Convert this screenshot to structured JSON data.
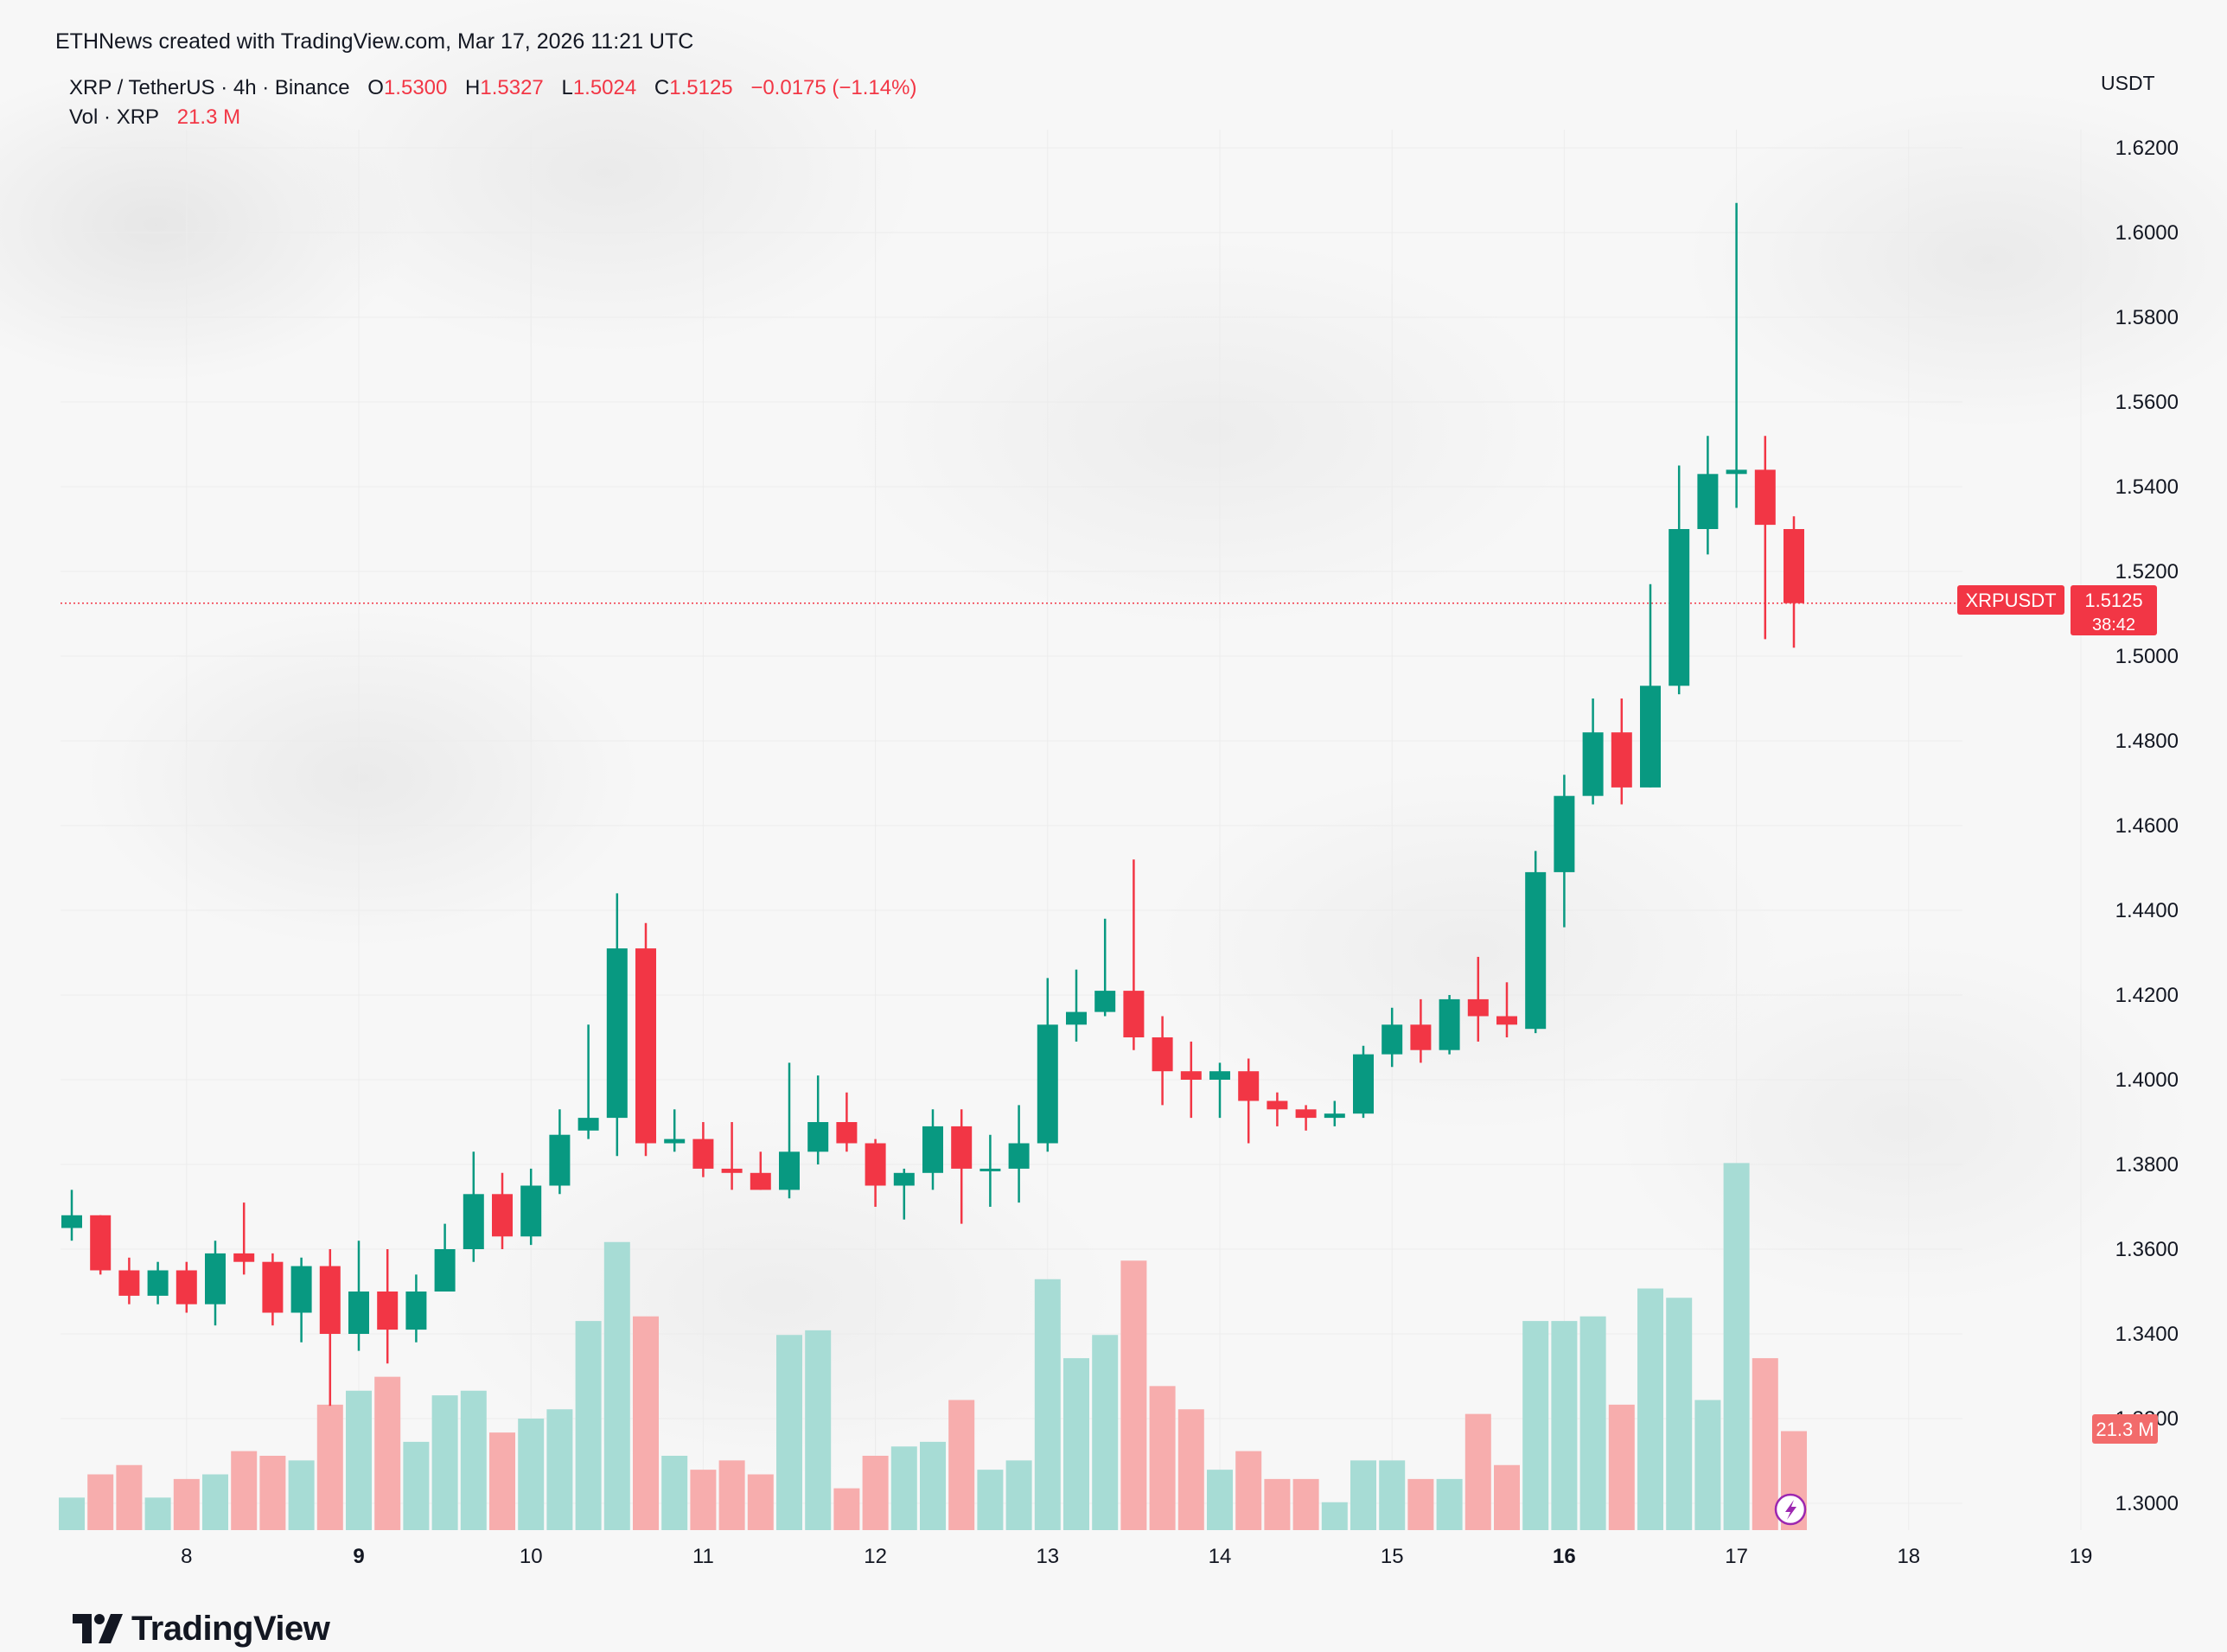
{
  "header": {
    "source": "ETHNews created with TradingView.com, Mar 17, 2026 11:21 UTC",
    "symbol": "XRP / TetherUS · 4h · Binance",
    "open_label": "O",
    "open_value": "1.5300",
    "high_label": "H",
    "high_value": "1.5327",
    "low_label": "L",
    "low_value": "1.5024",
    "close_label": "C",
    "close_value": "1.5125",
    "change": "−0.0175 (−1.14%)",
    "vol_label": "Vol · XRP",
    "vol_value": "21.3 M"
  },
  "brand": {
    "name": "TradingView"
  },
  "colors": {
    "up": "#089981",
    "down": "#f23645",
    "vol_up": "#a7dcd5",
    "vol_down": "#f7adad"
  },
  "chart_data": {
    "type": "candlestick",
    "currency_label": "USDT",
    "ylim": [
      1.29,
      1.635
    ],
    "y_ticks": [
      "1.6200",
      "1.6000",
      "1.5800",
      "1.5600",
      "1.5400",
      "1.5200",
      "1.5000",
      "1.4800",
      "1.4600",
      "1.4400",
      "1.4200",
      "1.4000",
      "1.3800",
      "1.3600",
      "1.3400",
      "1.3200",
      "1.3000"
    ],
    "y_tick_values": [
      1.62,
      1.6,
      1.58,
      1.56,
      1.54,
      1.52,
      1.5,
      1.48,
      1.46,
      1.44,
      1.42,
      1.4,
      1.38,
      1.36,
      1.34,
      1.32,
      1.3
    ],
    "x_ticks": [
      "8",
      "9",
      "10",
      "11",
      "12",
      "13",
      "14",
      "15",
      "16",
      "17",
      "18",
      "19"
    ],
    "x_tick_bold": [
      "9",
      "16"
    ],
    "x_tick_candle_index": [
      4,
      10,
      16,
      22,
      28,
      34,
      40,
      46,
      52,
      58,
      64,
      70
    ],
    "price_tag": {
      "symbol": "XRPUSDT",
      "price": "1.5125",
      "countdown": "38:42",
      "value": 1.5125
    },
    "volume_tag": "21.3 M",
    "volume_max_m": 80,
    "candles": [
      {
        "o": 1.365,
        "h": 1.374,
        "l": 1.362,
        "c": 1.368,
        "v": 7
      },
      {
        "o": 1.368,
        "h": 1.368,
        "l": 1.354,
        "c": 1.355,
        "v": 12
      },
      {
        "o": 1.355,
        "h": 1.358,
        "l": 1.347,
        "c": 1.349,
        "v": 14
      },
      {
        "o": 1.349,
        "h": 1.357,
        "l": 1.347,
        "c": 1.355,
        "v": 7
      },
      {
        "o": 1.355,
        "h": 1.357,
        "l": 1.345,
        "c": 1.347,
        "v": 11
      },
      {
        "o": 1.347,
        "h": 1.362,
        "l": 1.342,
        "c": 1.359,
        "v": 12
      },
      {
        "o": 1.359,
        "h": 1.371,
        "l": 1.354,
        "c": 1.357,
        "v": 17
      },
      {
        "o": 1.357,
        "h": 1.359,
        "l": 1.342,
        "c": 1.345,
        "v": 16
      },
      {
        "o": 1.345,
        "h": 1.358,
        "l": 1.338,
        "c": 1.356,
        "v": 15
      },
      {
        "o": 1.356,
        "h": 1.36,
        "l": 1.323,
        "c": 1.34,
        "v": 27
      },
      {
        "o": 1.34,
        "h": 1.362,
        "l": 1.336,
        "c": 1.35,
        "v": 30
      },
      {
        "o": 1.35,
        "h": 1.36,
        "l": 1.333,
        "c": 1.341,
        "v": 33
      },
      {
        "o": 1.341,
        "h": 1.354,
        "l": 1.338,
        "c": 1.35,
        "v": 19
      },
      {
        "o": 1.35,
        "h": 1.366,
        "l": 1.35,
        "c": 1.36,
        "v": 29
      },
      {
        "o": 1.36,
        "h": 1.383,
        "l": 1.357,
        "c": 1.373,
        "v": 30
      },
      {
        "o": 1.373,
        "h": 1.378,
        "l": 1.36,
        "c": 1.363,
        "v": 21
      },
      {
        "o": 1.363,
        "h": 1.379,
        "l": 1.361,
        "c": 1.375,
        "v": 24
      },
      {
        "o": 1.375,
        "h": 1.393,
        "l": 1.373,
        "c": 1.387,
        "v": 26
      },
      {
        "o": 1.388,
        "h": 1.413,
        "l": 1.386,
        "c": 1.391,
        "v": 45
      },
      {
        "o": 1.391,
        "h": 1.444,
        "l": 1.382,
        "c": 1.431,
        "v": 62
      },
      {
        "o": 1.431,
        "h": 1.437,
        "l": 1.382,
        "c": 1.385,
        "v": 46
      },
      {
        "o": 1.385,
        "h": 1.393,
        "l": 1.383,
        "c": 1.386,
        "v": 16
      },
      {
        "o": 1.386,
        "h": 1.39,
        "l": 1.377,
        "c": 1.379,
        "v": 13
      },
      {
        "o": 1.379,
        "h": 1.39,
        "l": 1.374,
        "c": 1.378,
        "v": 15
      },
      {
        "o": 1.378,
        "h": 1.383,
        "l": 1.374,
        "c": 1.374,
        "v": 12
      },
      {
        "o": 1.374,
        "h": 1.404,
        "l": 1.372,
        "c": 1.383,
        "v": 42
      },
      {
        "o": 1.383,
        "h": 1.401,
        "l": 1.38,
        "c": 1.39,
        "v": 43
      },
      {
        "o": 1.39,
        "h": 1.397,
        "l": 1.383,
        "c": 1.385,
        "v": 9
      },
      {
        "o": 1.385,
        "h": 1.386,
        "l": 1.37,
        "c": 1.375,
        "v": 16
      },
      {
        "o": 1.375,
        "h": 1.379,
        "l": 1.367,
        "c": 1.378,
        "v": 18
      },
      {
        "o": 1.378,
        "h": 1.393,
        "l": 1.374,
        "c": 1.389,
        "v": 19
      },
      {
        "o": 1.389,
        "h": 1.393,
        "l": 1.366,
        "c": 1.379,
        "v": 28
      },
      {
        "o": 1.379,
        "h": 1.387,
        "l": 1.37,
        "c": 1.379,
        "v": 13
      },
      {
        "o": 1.379,
        "h": 1.394,
        "l": 1.371,
        "c": 1.385,
        "v": 15
      },
      {
        "o": 1.385,
        "h": 1.424,
        "l": 1.383,
        "c": 1.413,
        "v": 54
      },
      {
        "o": 1.413,
        "h": 1.426,
        "l": 1.409,
        "c": 1.416,
        "v": 37
      },
      {
        "o": 1.416,
        "h": 1.438,
        "l": 1.415,
        "c": 1.421,
        "v": 42
      },
      {
        "o": 1.421,
        "h": 1.452,
        "l": 1.407,
        "c": 1.41,
        "v": 58
      },
      {
        "o": 1.41,
        "h": 1.415,
        "l": 1.394,
        "c": 1.402,
        "v": 31
      },
      {
        "o": 1.402,
        "h": 1.409,
        "l": 1.391,
        "c": 1.4,
        "v": 26
      },
      {
        "o": 1.4,
        "h": 1.404,
        "l": 1.391,
        "c": 1.402,
        "v": 13
      },
      {
        "o": 1.402,
        "h": 1.405,
        "l": 1.385,
        "c": 1.395,
        "v": 17
      },
      {
        "o": 1.395,
        "h": 1.397,
        "l": 1.389,
        "c": 1.393,
        "v": 11
      },
      {
        "o": 1.393,
        "h": 1.394,
        "l": 1.388,
        "c": 1.391,
        "v": 11
      },
      {
        "o": 1.391,
        "h": 1.395,
        "l": 1.389,
        "c": 1.392,
        "v": 6
      },
      {
        "o": 1.392,
        "h": 1.408,
        "l": 1.391,
        "c": 1.406,
        "v": 15
      },
      {
        "o": 1.406,
        "h": 1.417,
        "l": 1.403,
        "c": 1.413,
        "v": 15
      },
      {
        "o": 1.413,
        "h": 1.419,
        "l": 1.404,
        "c": 1.407,
        "v": 11
      },
      {
        "o": 1.407,
        "h": 1.42,
        "l": 1.406,
        "c": 1.419,
        "v": 11
      },
      {
        "o": 1.419,
        "h": 1.429,
        "l": 1.409,
        "c": 1.415,
        "v": 25
      },
      {
        "o": 1.415,
        "h": 1.423,
        "l": 1.41,
        "c": 1.413,
        "v": 14
      },
      {
        "o": 1.412,
        "h": 1.454,
        "l": 1.411,
        "c": 1.449,
        "v": 45
      },
      {
        "o": 1.449,
        "h": 1.472,
        "l": 1.436,
        "c": 1.467,
        "v": 45
      },
      {
        "o": 1.467,
        "h": 1.49,
        "l": 1.465,
        "c": 1.482,
        "v": 46
      },
      {
        "o": 1.482,
        "h": 1.49,
        "l": 1.465,
        "c": 1.469,
        "v": 27
      },
      {
        "o": 1.469,
        "h": 1.517,
        "l": 1.469,
        "c": 1.493,
        "v": 52
      },
      {
        "o": 1.493,
        "h": 1.545,
        "l": 1.491,
        "c": 1.53,
        "v": 50
      },
      {
        "o": 1.53,
        "h": 1.552,
        "l": 1.524,
        "c": 1.543,
        "v": 28
      },
      {
        "o": 1.543,
        "h": 1.607,
        "l": 1.535,
        "c": 1.544,
        "v": 79
      },
      {
        "o": 1.544,
        "h": 1.552,
        "l": 1.504,
        "c": 1.531,
        "v": 37
      },
      {
        "o": 1.53,
        "h": 1.533,
        "l": 1.502,
        "c": 1.5125,
        "v": 21.3
      }
    ]
  }
}
